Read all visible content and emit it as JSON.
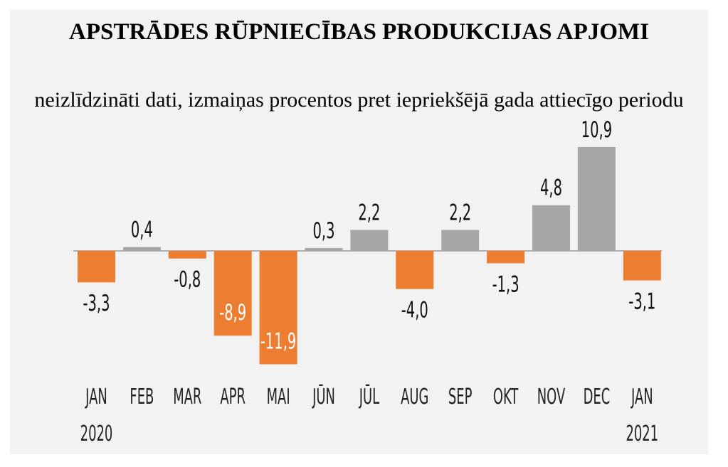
{
  "chart_data": {
    "type": "bar",
    "title": "APSTRĀDES RŪPNIECĪBAS PRODUKCIJAS APJOMI",
    "subtitle": "neizlīdzināti dati, izmaiņas procentos pret iepriekšējā gada attiecīgo periodu",
    "categories": [
      "JAN",
      "FEB",
      "MAR",
      "APR",
      "MAI",
      "JŪN",
      "JŪL",
      "AUG",
      "SEP",
      "OKT",
      "NOV",
      "DEC",
      "JAN"
    ],
    "years": [
      "2020",
      "",
      "",
      "",
      "",
      "",
      "",
      "",
      "",
      "",
      "",
      "",
      "2021"
    ],
    "values": [
      -3.3,
      0.4,
      -0.8,
      -8.9,
      -11.9,
      0.3,
      2.2,
      -4.0,
      2.2,
      -1.3,
      4.8,
      10.9,
      -3.1
    ],
    "value_labels": [
      "-3,3",
      "0,4",
      "-0,8",
      "-8,9",
      "-11,9",
      "0,3",
      "2,2",
      "-4,0",
      "2,2",
      "-1,3",
      "4,8",
      "10,9",
      "-3,1"
    ],
    "colors": {
      "positive": "#a6a6a6",
      "negative": "#ed7d31",
      "axis": "#9a9a9a",
      "background": "#f2f2f2"
    },
    "grid": false,
    "legend": "none"
  }
}
